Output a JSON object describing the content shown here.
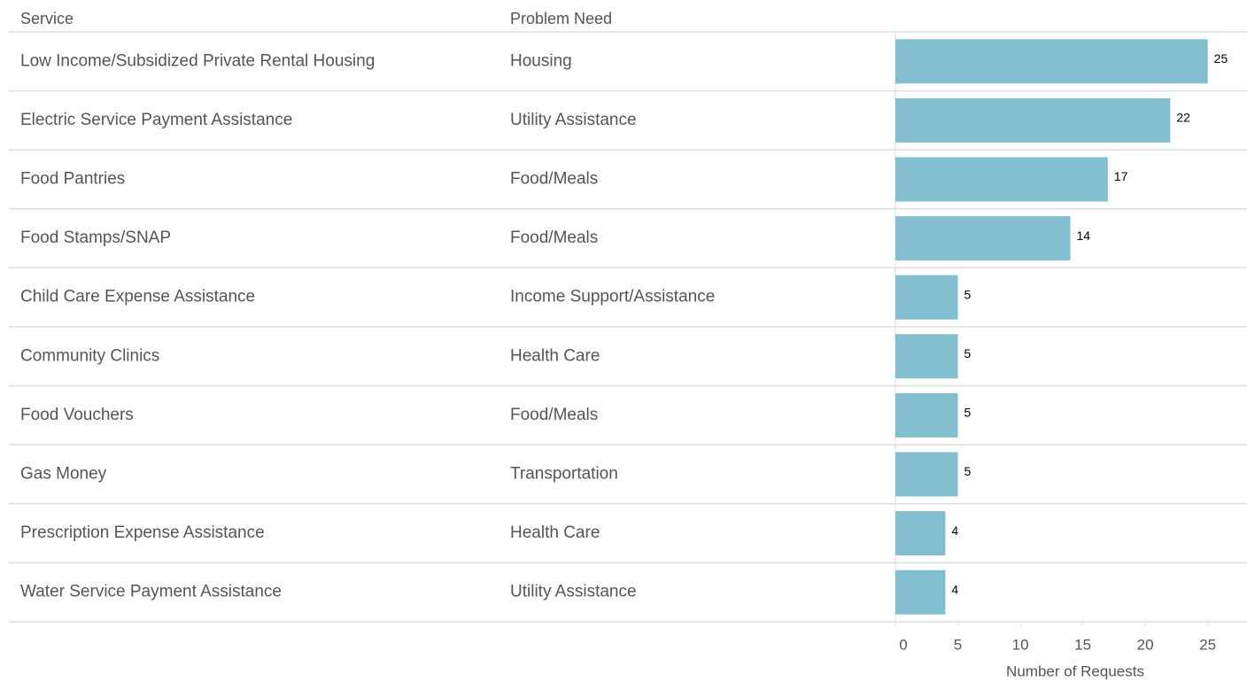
{
  "chart_data": {
    "type": "bar",
    "columns": [
      "Service",
      "Problem Need"
    ],
    "categories": [
      "Low Income/Subsidized Private Rental Housing",
      "Electric Service Payment Assistance",
      "Food Pantries",
      "Food Stamps/SNAP",
      "Child Care Expense Assistance",
      "Community Clinics",
      "Food Vouchers",
      "Gas Money",
      "Prescription Expense Assistance",
      "Water Service Payment Assistance"
    ],
    "problem_needs": [
      "Housing",
      "Utility Assistance",
      "Food/Meals",
      "Food/Meals",
      "Income Support/Assistance",
      "Health Care",
      "Food/Meals",
      "Transportation",
      "Health Care",
      "Utility Assistance"
    ],
    "values": [
      25,
      22,
      17,
      14,
      5,
      5,
      5,
      5,
      4,
      4
    ],
    "color": "#82bdd0",
    "xlabel": "Number of Requests",
    "xlim": [
      0,
      28
    ],
    "xticks": [
      0,
      5,
      10,
      15,
      20,
      25
    ],
    "grid": false
  }
}
